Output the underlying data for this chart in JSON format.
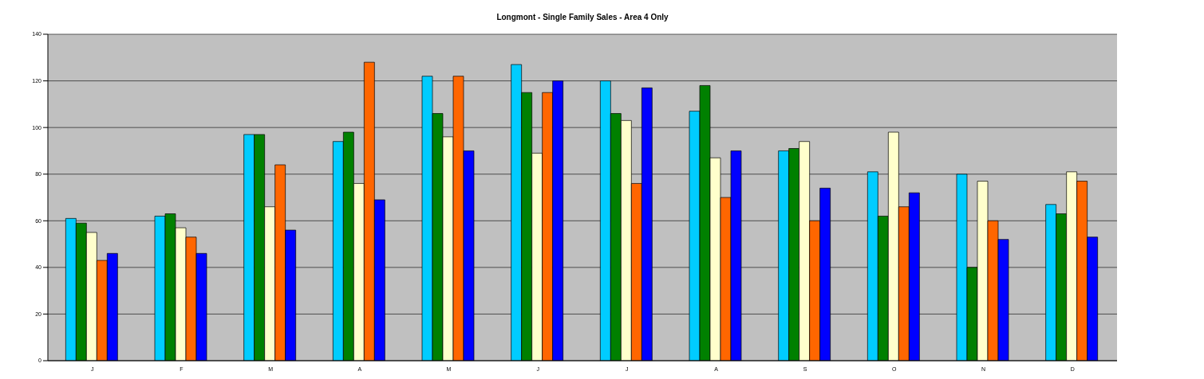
{
  "chart_data": {
    "type": "bar",
    "title": "Longmont - Single Family Sales - Area 4 Only",
    "categories": [
      "J",
      "F",
      "M",
      "A",
      "M",
      "J",
      "J",
      "A",
      "S",
      "O",
      "N",
      "D"
    ],
    "series": [
      {
        "color": "#00ccff",
        "values": [
          61,
          62,
          97,
          94,
          122,
          127,
          120,
          107,
          90,
          81,
          80,
          67
        ]
      },
      {
        "color": "#008000",
        "values": [
          59,
          63,
          97,
          98,
          106,
          115,
          106,
          118,
          91,
          62,
          40,
          63
        ]
      },
      {
        "color": "#ffffcc",
        "values": [
          55,
          57,
          66,
          76,
          96,
          89,
          103,
          87,
          94,
          98,
          77,
          81
        ]
      },
      {
        "color": "#ff6600",
        "values": [
          43,
          53,
          84,
          128,
          122,
          115,
          76,
          70,
          60,
          66,
          60,
          77
        ]
      },
      {
        "color": "#0000ff",
        "values": [
          46,
          46,
          56,
          69,
          90,
          120,
          117,
          90,
          74,
          72,
          52,
          53
        ]
      }
    ],
    "ylim": [
      0,
      140
    ],
    "yticks": [
      0,
      20,
      40,
      60,
      80,
      100,
      120,
      140
    ],
    "grid": "y",
    "legend": false
  }
}
